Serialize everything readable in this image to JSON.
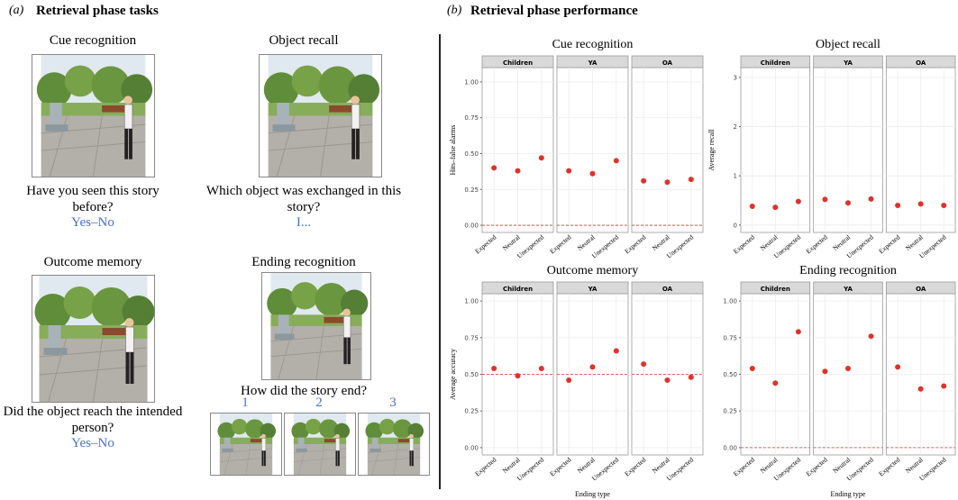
{
  "panel_a": {
    "label": "(a)",
    "title": "Retrieval phase tasks",
    "tasks": [
      {
        "title": "Cue recognition",
        "question": "Have you seen this story before?",
        "answer": "Yes–No"
      },
      {
        "title": "Object recall",
        "question": "Which object was exchanged in this story?",
        "answer": "I..."
      },
      {
        "title": "Outcome memory",
        "question": "Did the object reach the intended person?",
        "answer": "Yes–No"
      },
      {
        "title": "Ending recognition",
        "question": "How did the story end?",
        "options": [
          "1",
          "2",
          "3"
        ]
      }
    ]
  },
  "panel_b": {
    "label": "(b)",
    "title": "Retrieval phase performance"
  },
  "chart_data": [
    {
      "type": "dot",
      "title": "Cue recognition",
      "y_label": "Hits–false alarms",
      "categories": [
        "Expected",
        "Neutral",
        "Unexpected"
      ],
      "point_color": "#e0312b",
      "series": [
        {
          "name": "Children",
          "values": [
            0.4,
            0.38,
            0.47
          ]
        },
        {
          "name": "YA",
          "values": [
            0.38,
            0.36,
            0.45
          ]
        },
        {
          "name": "OA",
          "values": [
            0.31,
            0.3,
            0.32
          ]
        }
      ],
      "ylim": [
        -0.05,
        1.1
      ],
      "yticks": [
        {
          "value": 0,
          "label": "0.00"
        },
        {
          "value": 0.25,
          "label": "0.25"
        },
        {
          "value": 0.5,
          "label": "0.50"
        },
        {
          "value": 0.75,
          "label": "0.75"
        },
        {
          "value": 1,
          "label": "1.00"
        }
      ],
      "reference_line": 0,
      "grid": true
    },
    {
      "type": "dot",
      "title": "Object recall",
      "y_label": "Average recall",
      "categories": [
        "Expected",
        "Neutral",
        "Unexpected"
      ],
      "point_color": "#e0312b",
      "series": [
        {
          "name": "Children",
          "values": [
            0.38,
            0.36,
            0.48
          ]
        },
        {
          "name": "YA",
          "values": [
            0.52,
            0.45,
            0.53
          ]
        },
        {
          "name": "OA",
          "values": [
            0.4,
            0.43,
            0.4
          ]
        }
      ],
      "ylim": [
        -0.15,
        3.2
      ],
      "yticks": [
        0,
        1,
        2,
        3
      ],
      "grid": true
    },
    {
      "type": "dot",
      "title": "Outcome memory",
      "y_label": "Average accuracy",
      "x_label": "Ending type",
      "categories": [
        "Expected",
        "Neutral",
        "Unexpected"
      ],
      "point_color": "#e0312b",
      "series": [
        {
          "name": "Children",
          "values": [
            0.54,
            0.49,
            0.54
          ]
        },
        {
          "name": "YA",
          "values": [
            0.46,
            0.55,
            0.66
          ]
        },
        {
          "name": "OA",
          "values": [
            0.57,
            0.46,
            0.48
          ]
        }
      ],
      "ylim": [
        -0.05,
        1.05
      ],
      "yticks": [
        {
          "value": 0,
          "label": "0.00"
        },
        {
          "value": 0.25,
          "label": "0.25"
        },
        {
          "value": 0.5,
          "label": "0.50"
        },
        {
          "value": 0.75,
          "label": "0.75"
        },
        {
          "value": 1,
          "label": "1.00"
        }
      ],
      "reference_line": 0.5,
      "grid": true
    },
    {
      "type": "dot",
      "title": "Ending recognition",
      "x_label": "Ending type",
      "categories": [
        "Expected",
        "Neutral",
        "Unexpected"
      ],
      "point_color": "#e0312b",
      "series": [
        {
          "name": "Children",
          "values": [
            0.54,
            0.44,
            0.79
          ]
        },
        {
          "name": "YA",
          "values": [
            0.52,
            0.54,
            0.76
          ]
        },
        {
          "name": "OA",
          "values": [
            0.55,
            0.4,
            0.42
          ]
        }
      ],
      "ylim": [
        -0.05,
        1.05
      ],
      "yticks": [
        {
          "value": 0,
          "label": "0.00"
        },
        {
          "value": 0.25,
          "label": "0.25"
        },
        {
          "value": 0.5,
          "label": "0.50"
        },
        {
          "value": 0.75,
          "label": "0.75"
        },
        {
          "value": 1,
          "label": "1.00"
        }
      ],
      "reference_line": 0,
      "grid": true
    }
  ]
}
